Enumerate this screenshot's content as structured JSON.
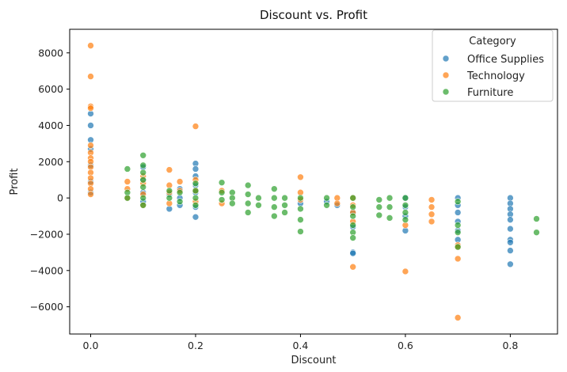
{
  "chart_data": {
    "type": "scatter",
    "title": "Discount vs. Profit",
    "xlabel": "Discount",
    "ylabel": "Profit",
    "xlim": [
      -0.04,
      0.89
    ],
    "ylim": [
      -7500,
      9300
    ],
    "xticks": [
      0.0,
      0.2,
      0.4,
      0.6,
      0.8
    ],
    "xtick_labels": [
      "0.0",
      "0.2",
      "0.4",
      "0.6",
      "0.8"
    ],
    "yticks": [
      -6000,
      -4000,
      -2000,
      0,
      2000,
      4000,
      6000,
      8000
    ],
    "ytick_labels": [
      "−6000",
      "−4000",
      "−2000",
      "0",
      "2000",
      "4000",
      "6000",
      "8000"
    ],
    "grid": false,
    "legend": {
      "title": "Category",
      "placement": "top-right",
      "entries": [
        "Office Supplies",
        "Technology",
        "Furniture"
      ]
    },
    "series": [
      {
        "name": "Office Supplies",
        "color": "#1f77b4",
        "points": [
          [
            0.0,
            4650
          ],
          [
            0.0,
            4000
          ],
          [
            0.0,
            3200
          ],
          [
            0.0,
            2700
          ],
          [
            0.0,
            1800
          ],
          [
            0.0,
            900
          ],
          [
            0.0,
            300
          ],
          [
            0.1,
            1700
          ],
          [
            0.1,
            1000
          ],
          [
            0.1,
            300
          ],
          [
            0.1,
            -200
          ],
          [
            0.15,
            -600
          ],
          [
            0.15,
            200
          ],
          [
            0.17,
            500
          ],
          [
            0.17,
            0
          ],
          [
            0.17,
            -400
          ],
          [
            0.2,
            1900
          ],
          [
            0.2,
            1600
          ],
          [
            0.2,
            1200
          ],
          [
            0.2,
            700
          ],
          [
            0.2,
            300
          ],
          [
            0.2,
            -500
          ],
          [
            0.2,
            -1050
          ],
          [
            0.4,
            -300
          ],
          [
            0.45,
            -200
          ],
          [
            0.47,
            -400
          ],
          [
            0.5,
            -3000
          ],
          [
            0.5,
            -3050
          ],
          [
            0.5,
            -1600
          ],
          [
            0.5,
            -800
          ],
          [
            0.6,
            -1800
          ],
          [
            0.6,
            -1000
          ],
          [
            0.6,
            -500
          ],
          [
            0.6,
            0
          ],
          [
            0.7,
            0
          ],
          [
            0.7,
            -400
          ],
          [
            0.7,
            -800
          ],
          [
            0.7,
            -1300
          ],
          [
            0.7,
            -1800
          ],
          [
            0.7,
            -2300
          ],
          [
            0.8,
            0
          ],
          [
            0.8,
            -300
          ],
          [
            0.8,
            -600
          ],
          [
            0.8,
            -900
          ],
          [
            0.8,
            -1200
          ],
          [
            0.8,
            -1700
          ],
          [
            0.8,
            -2300
          ],
          [
            0.8,
            -2450
          ],
          [
            0.8,
            -2900
          ],
          [
            0.8,
            -3650
          ]
        ]
      },
      {
        "name": "Technology",
        "color": "#ff7f0e",
        "points": [
          [
            0.0,
            8400
          ],
          [
            0.0,
            6700
          ],
          [
            0.0,
            5050
          ],
          [
            0.0,
            4950
          ],
          [
            0.0,
            2900
          ],
          [
            0.0,
            2500
          ],
          [
            0.0,
            2200
          ],
          [
            0.0,
            2000
          ],
          [
            0.0,
            1700
          ],
          [
            0.0,
            1400
          ],
          [
            0.0,
            1100
          ],
          [
            0.0,
            800
          ],
          [
            0.0,
            500
          ],
          [
            0.0,
            200
          ],
          [
            0.07,
            900
          ],
          [
            0.07,
            500
          ],
          [
            0.07,
            0
          ],
          [
            0.1,
            1200
          ],
          [
            0.1,
            800
          ],
          [
            0.1,
            200
          ],
          [
            0.1,
            -400
          ],
          [
            0.15,
            1550
          ],
          [
            0.15,
            700
          ],
          [
            0.15,
            300
          ],
          [
            0.15,
            -300
          ],
          [
            0.17,
            900
          ],
          [
            0.17,
            400
          ],
          [
            0.2,
            3950
          ],
          [
            0.2,
            1000
          ],
          [
            0.2,
            400
          ],
          [
            0.2,
            -200
          ],
          [
            0.25,
            400
          ],
          [
            0.25,
            -300
          ],
          [
            0.4,
            1150
          ],
          [
            0.4,
            300
          ],
          [
            0.4,
            -100
          ],
          [
            0.47,
            0
          ],
          [
            0.47,
            -300
          ],
          [
            0.5,
            0
          ],
          [
            0.5,
            -400
          ],
          [
            0.5,
            -800
          ],
          [
            0.5,
            -1300
          ],
          [
            0.5,
            -3800
          ],
          [
            0.6,
            -4050
          ],
          [
            0.6,
            -1500
          ],
          [
            0.65,
            -100
          ],
          [
            0.65,
            -500
          ],
          [
            0.65,
            -900
          ],
          [
            0.65,
            -1300
          ],
          [
            0.7,
            -2600
          ],
          [
            0.7,
            -2700
          ],
          [
            0.7,
            -3350
          ],
          [
            0.7,
            -6600
          ]
        ]
      },
      {
        "name": "Furniture",
        "color": "#2ca02c",
        "points": [
          [
            0.07,
            1600
          ],
          [
            0.07,
            300
          ],
          [
            0.07,
            0
          ],
          [
            0.1,
            2350
          ],
          [
            0.1,
            1800
          ],
          [
            0.1,
            1400
          ],
          [
            0.1,
            1000
          ],
          [
            0.1,
            600
          ],
          [
            0.1,
            0
          ],
          [
            0.1,
            -400
          ],
          [
            0.15,
            400
          ],
          [
            0.15,
            0
          ],
          [
            0.17,
            300
          ],
          [
            0.17,
            -200
          ],
          [
            0.2,
            800
          ],
          [
            0.2,
            400
          ],
          [
            0.2,
            0
          ],
          [
            0.2,
            -400
          ],
          [
            0.25,
            850
          ],
          [
            0.25,
            300
          ],
          [
            0.25,
            -100
          ],
          [
            0.27,
            300
          ],
          [
            0.27,
            0
          ],
          [
            0.27,
            -300
          ],
          [
            0.3,
            700
          ],
          [
            0.3,
            200
          ],
          [
            0.3,
            -300
          ],
          [
            0.3,
            -800
          ],
          [
            0.32,
            0
          ],
          [
            0.32,
            -400
          ],
          [
            0.35,
            500
          ],
          [
            0.35,
            0
          ],
          [
            0.35,
            -500
          ],
          [
            0.35,
            -1000
          ],
          [
            0.37,
            0
          ],
          [
            0.37,
            -400
          ],
          [
            0.37,
            -800
          ],
          [
            0.4,
            0
          ],
          [
            0.4,
            -600
          ],
          [
            0.4,
            -1200
          ],
          [
            0.4,
            -1850
          ],
          [
            0.45,
            0
          ],
          [
            0.45,
            -400
          ],
          [
            0.5,
            0
          ],
          [
            0.5,
            -500
          ],
          [
            0.5,
            -1000
          ],
          [
            0.5,
            -1500
          ],
          [
            0.5,
            -1900
          ],
          [
            0.5,
            -2200
          ],
          [
            0.55,
            -100
          ],
          [
            0.55,
            -500
          ],
          [
            0.55,
            -950
          ],
          [
            0.57,
            0
          ],
          [
            0.57,
            -500
          ],
          [
            0.57,
            -1100
          ],
          [
            0.6,
            0
          ],
          [
            0.6,
            -400
          ],
          [
            0.6,
            -800
          ],
          [
            0.6,
            -1200
          ],
          [
            0.7,
            -200
          ],
          [
            0.7,
            -1500
          ],
          [
            0.7,
            -1900
          ],
          [
            0.7,
            -2700
          ],
          [
            0.85,
            -1150
          ],
          [
            0.85,
            -1900
          ]
        ]
      }
    ]
  }
}
